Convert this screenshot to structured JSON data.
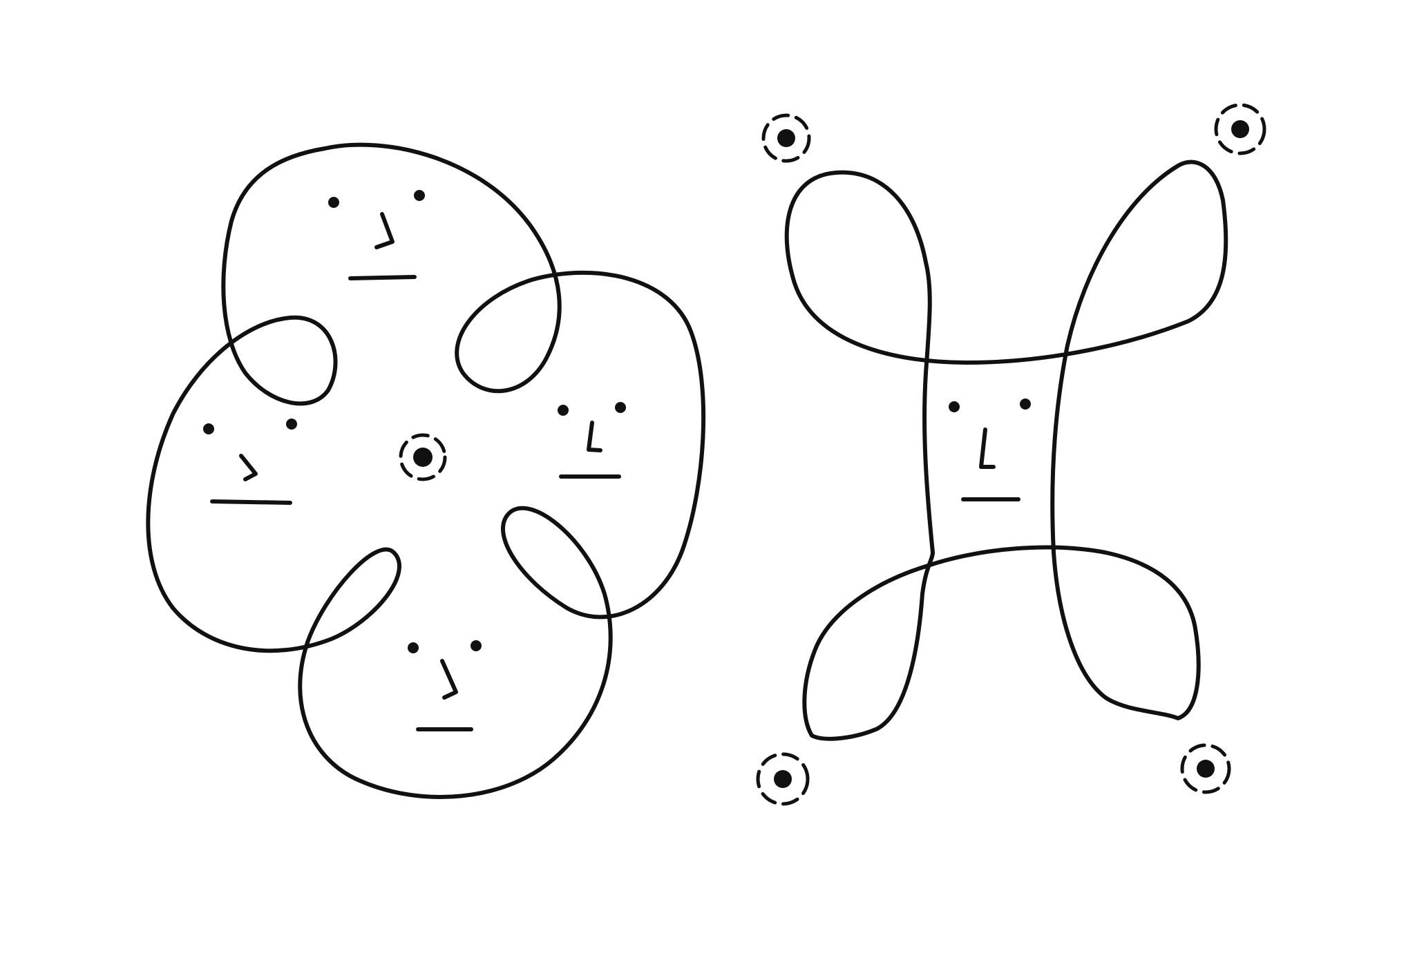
{
  "drawing": {
    "background_color": "#ffffff",
    "ink_color": "#111111",
    "figures": [
      {
        "name": "four-lobed-curve",
        "lobe_count": 4,
        "faces_count": 4,
        "winding_centers_count": 1
      },
      {
        "name": "figure-eight-loops-curve",
        "loop_count": 4,
        "faces_count": 1,
        "winding_centers_count": 4
      }
    ]
  }
}
